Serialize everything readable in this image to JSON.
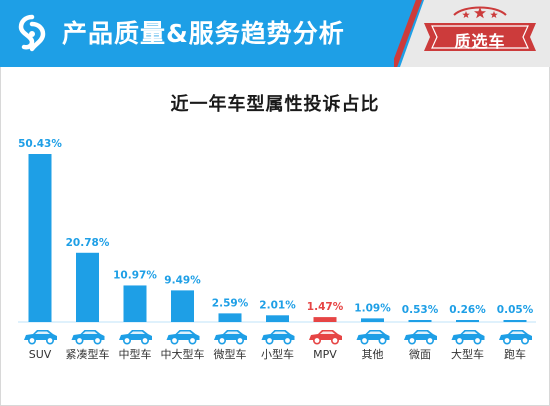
{
  "header": {
    "title": "产品质量&服务趋势分析",
    "badge_text": "质选车",
    "colors": {
      "bar": "#1e9fe6",
      "accent": "#cc3b3b",
      "panel": "#e9e9e9"
    }
  },
  "chart_data": {
    "type": "bar",
    "title": "近一年车型属性投诉占比",
    "categories": [
      "SUV",
      "紧凑型车",
      "中型车",
      "中大型车",
      "微型车",
      "小型车",
      "MPV",
      "其他",
      "微面",
      "大型车",
      "跑车"
    ],
    "values": [
      50.43,
      20.78,
      10.97,
      9.49,
      2.59,
      2.01,
      1.47,
      1.09,
      0.53,
      0.26,
      0.05
    ],
    "value_labels": [
      "50.43%",
      "20.78%",
      "10.97%",
      "9.49%",
      "2.59%",
      "2.01%",
      "1.47%",
      "1.09%",
      "0.53%",
      "0.26%",
      "0.05%"
    ],
    "unit": "%",
    "highlight_category": "MPV",
    "bar_color": "#1e9fe6",
    "highlight_color": "#e64545",
    "ylim": [
      0,
      50.43
    ],
    "grid": false,
    "legend": "none",
    "category_icons": "car-icon"
  }
}
